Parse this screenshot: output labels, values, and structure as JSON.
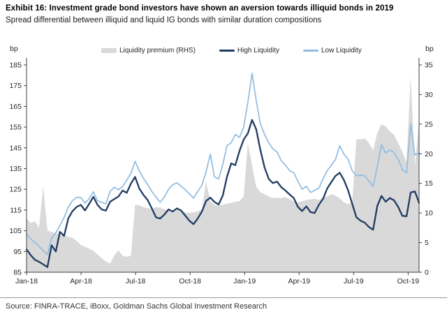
{
  "header": {
    "exhibit_title": "Exhibit 16: Investment grade bond investors have shown an aversion towards illiquid bonds in 2019",
    "subtitle": "Spread differential between illiquid and liquid IG bonds with similar duration compositions"
  },
  "legend": [
    {
      "label": "Liquidity premium (RHS)",
      "type": "area",
      "color": "#d9d9d9"
    },
    {
      "label": "High Liquidity",
      "type": "line",
      "color": "#1f3c61"
    },
    {
      "label": "Low Liquidity",
      "type": "line",
      "color": "#8fbce2"
    }
  ],
  "source": "Source: FINRA-TRACE, iBoxx, Goldman Sachs Global Investment Research",
  "colors": {
    "high_liquidity": "#1f3c61",
    "low_liquidity": "#8fbce2",
    "liquidity_premium": "#d9d9d9",
    "axis": "#404040",
    "tick_text": "#262626"
  },
  "chart_data": {
    "type": "line",
    "title": "Spread differential between illiquid and liquid IG bonds",
    "legend_position": "top",
    "grid": false,
    "sampling": "weekly samples, Jan-2018 through mid-Oct-2019",
    "x_axis": {
      "ticks": [
        "Jan-18",
        "Apr-18",
        "Jul-18",
        "Oct-18",
        "Jan-19",
        "Apr-19",
        "Jul-19",
        "Oct-19"
      ],
      "tick_positions_months": [
        0,
        3,
        6,
        9,
        12,
        15,
        18,
        21
      ],
      "total_months": 21.6
    },
    "left_axis": {
      "unit": "bp",
      "range": [
        85,
        185
      ],
      "ticks": [
        185,
        175,
        165,
        155,
        145,
        135,
        125,
        115,
        105,
        95,
        85
      ]
    },
    "right_axis": {
      "unit": "bp",
      "range": [
        0,
        35
      ],
      "ticks": [
        35,
        30,
        25,
        20,
        15,
        10,
        5,
        0
      ]
    },
    "series": [
      {
        "name": "Liquidity premium (RHS)",
        "type": "area",
        "axis": "right",
        "color": "#d9d9d9",
        "values": [
          9.1,
          8.3,
          8.6,
          7.5,
          14.5,
          7.0,
          6.8,
          6.6,
          6.4,
          6.2,
          6.0,
          5.8,
          5.3,
          4.6,
          4.3,
          4.0,
          3.6,
          3.0,
          2.4,
          1.8,
          1.5,
          2.8,
          3.7,
          2.8,
          2.6,
          2.8,
          11.4,
          11.3,
          11.0,
          10.8,
          10.7,
          11.0,
          10.9,
          10.6,
          10.5,
          10.4,
          10.7,
          10.4,
          10.1,
          10.0,
          10.1,
          10.3,
          10.6,
          15.3,
          12.0,
          11.4,
          11.3,
          11.4,
          11.6,
          11.7,
          11.9,
          12.0,
          12.8,
          21.8,
          18.0,
          14.5,
          13.5,
          13.2,
          12.8,
          12.5,
          12.6,
          12.5,
          12.7,
          12.4,
          11.9,
          11.8,
          12.0,
          12.2,
          12.3,
          12.4,
          12.2,
          12.6,
          12.8,
          13.2,
          12.9,
          12.5,
          11.8,
          11.5,
          11.8,
          22.5,
          22.4,
          22.6,
          21.8,
          20.6,
          23.5,
          25.0,
          24.6,
          23.8,
          23.2,
          21.8,
          20.3,
          18.6,
          33.0,
          18.0,
          25.5
        ]
      },
      {
        "name": "High Liquidity",
        "type": "line",
        "axis": "left",
        "color": "#1f3c61",
        "values": [
          96.0,
          93.2,
          91.0,
          90.0,
          88.8,
          87.5,
          98.0,
          95.0,
          104.5,
          102.5,
          111.0,
          114.5,
          116.5,
          117.5,
          114.8,
          118.0,
          121.4,
          117.5,
          115.3,
          114.7,
          119.0,
          120.3,
          121.5,
          124.4,
          123.3,
          127.8,
          131.0,
          125.4,
          122.3,
          119.8,
          115.8,
          111.5,
          110.9,
          112.8,
          115.3,
          114.3,
          115.8,
          114.8,
          112.3,
          109.8,
          108.2,
          110.9,
          114.3,
          119.4,
          121.0,
          118.9,
          117.7,
          122.0,
          131.0,
          137.5,
          136.6,
          143.5,
          149.0,
          152.0,
          158.5,
          154.0,
          144.0,
          135.5,
          130.0,
          128.0,
          128.7,
          126.0,
          124.4,
          122.5,
          120.8,
          116.5,
          114.5,
          116.8,
          114.0,
          113.6,
          117.5,
          120.4,
          125.4,
          128.5,
          131.5,
          133.0,
          129.5,
          124.5,
          118.0,
          111.5,
          109.8,
          108.9,
          106.8,
          105.5,
          117.0,
          121.8,
          119.0,
          120.8,
          119.7,
          116.5,
          112.2,
          112.0,
          123.5,
          124.0,
          118.5
        ]
      },
      {
        "name": "Low Liquidity",
        "type": "line",
        "axis": "left",
        "color": "#8fbce2",
        "values": [
          103.5,
          101.0,
          99.3,
          97.5,
          95.5,
          93.5,
          101.5,
          104.0,
          107.5,
          111.5,
          116.5,
          119.5,
          121.2,
          121.0,
          118.3,
          120.5,
          123.8,
          119.5,
          118.7,
          118.0,
          124.0,
          126.0,
          124.8,
          126.3,
          129.5,
          132.8,
          138.5,
          134.0,
          130.3,
          127.3,
          124.0,
          121.3,
          118.7,
          121.3,
          125.0,
          127.2,
          128.2,
          126.5,
          124.8,
          122.8,
          120.8,
          124.0,
          127.0,
          133.5,
          142.0,
          131.0,
          130.0,
          137.0,
          146.0,
          147.5,
          151.5,
          150.0,
          155.0,
          167.0,
          181.0,
          168.0,
          156.5,
          151.5,
          147.5,
          144.5,
          143.0,
          138.8,
          136.6,
          134.0,
          133.0,
          128.8,
          125.0,
          126.5,
          123.5,
          124.5,
          125.5,
          130.0,
          134.0,
          136.5,
          139.5,
          146.0,
          142.0,
          139.5,
          134.0,
          131.5,
          131.8,
          131.5,
          129.0,
          126.3,
          136.0,
          146.5,
          142.5,
          144.0,
          142.8,
          139.5,
          134.5,
          132.8,
          156.5,
          141.5,
          142.5
        ]
      }
    ]
  }
}
